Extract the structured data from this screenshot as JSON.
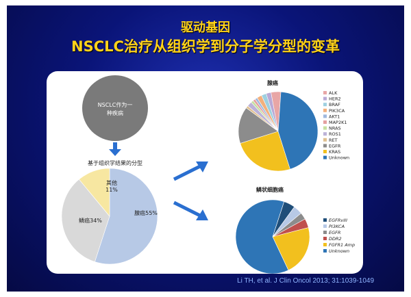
{
  "title_line1": "驱动基因",
  "title_line2": "NSCLC治疗从组织学到分子学分型的变革",
  "top_circle_text_line1": "NSCLC作为一",
  "top_circle_text_line2": "种疾病",
  "subtitle_histology": "基于组织学结果的分型",
  "citation": "Li TH, et al. J Clin Oncol 2013; 31:1039-1049",
  "colors": {
    "title": "#ffd21a",
    "arrow": "#2a6fd0",
    "grey_circle": "#7a7a7a"
  },
  "chart_data": [
    {
      "type": "pie",
      "title": "",
      "labels": [
        "腺癌55%",
        "鳞癌34%",
        "其他 11%"
      ],
      "categories": [
        "腺癌",
        "鳞癌",
        "其他"
      ],
      "values": [
        55,
        34,
        11
      ],
      "colors": [
        "#b7c9e6",
        "#d9d9d9",
        "#f7e7a1"
      ]
    },
    {
      "type": "pie",
      "title": "腺癌",
      "legend_position": "right",
      "categories": [
        "ALK",
        "HER2",
        "BRAF",
        "PIK3CA",
        "AKT1",
        "MAP2K1",
        "NRAS",
        "ROS1",
        "RET",
        "EGFR",
        "KRAS",
        "Unknown"
      ],
      "values": [
        4,
        2,
        2,
        2,
        1,
        1,
        1,
        2,
        1,
        15,
        25,
        44
      ],
      "colors": [
        "#e8a6a6",
        "#b9a9d6",
        "#9ed0e0",
        "#f3b07c",
        "#9fb9de",
        "#e4a0a0",
        "#c6e0a0",
        "#bcb2d8",
        "#e0c090",
        "#8c8c8c",
        "#f2c01e",
        "#2e75b6"
      ]
    },
    {
      "type": "pie",
      "title": "鳞状细胞癌",
      "legend_position": "right",
      "categories": [
        "EGFRvIII",
        "PI3KCA",
        "EGFR",
        "DDR2",
        "FGFR1 Amp",
        "Unknown"
      ],
      "values": [
        5,
        4,
        3,
        4,
        22,
        62
      ],
      "colors": [
        "#1f4e79",
        "#b7c9e6",
        "#8c8c8c",
        "#c0504d",
        "#f2c01e",
        "#2e75b6"
      ]
    }
  ]
}
